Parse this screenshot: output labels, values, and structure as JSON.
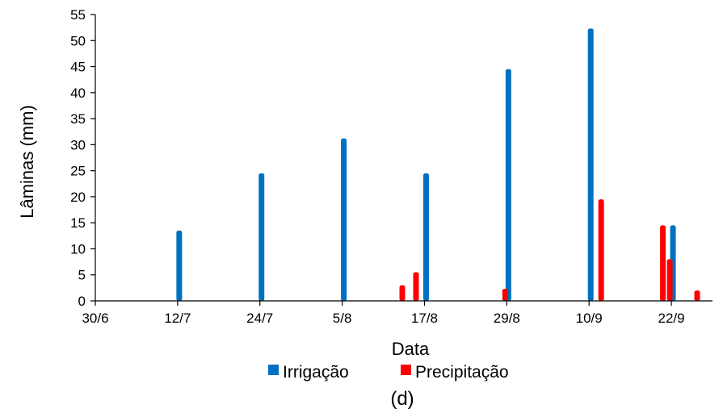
{
  "colors": {
    "irrigacao": "#0070C0",
    "precipitacao": "#FF0000"
  },
  "panel_label": "(d)",
  "chart_data": {
    "type": "bar",
    "xlabel": "Data",
    "ylabel": "Lâminas (mm)",
    "xlim": [
      "30/6",
      "28/9"
    ],
    "x_tick_labels": [
      "30/6",
      "12/7",
      "24/7",
      "5/8",
      "17/8",
      "29/8",
      "10/9",
      "22/9"
    ],
    "ylim": [
      0,
      55
    ],
    "y_ticks": [
      0,
      5,
      10,
      15,
      20,
      25,
      30,
      35,
      40,
      45,
      50,
      55
    ],
    "grid": false,
    "legend_position": "bottom",
    "series": [
      {
        "name": "Irrigação",
        "color": "#0070C0",
        "points": [
          {
            "date": "12/7",
            "value": 13.5
          },
          {
            "date": "24/7",
            "value": 24.5
          },
          {
            "date": "5/8",
            "value": 31.2
          },
          {
            "date": "17/8",
            "value": 24.5
          },
          {
            "date": "29/8",
            "value": 44.5
          },
          {
            "date": "10/9",
            "value": 52.3
          },
          {
            "date": "22/9",
            "value": 14.5
          }
        ]
      },
      {
        "name": "Precipitação",
        "color": "#FF0000",
        "points": [
          {
            "date": "14/8",
            "value": 3.0
          },
          {
            "date": "16/8",
            "value": 5.5
          },
          {
            "date": "29/8",
            "value": 2.3
          },
          {
            "date": "12/9",
            "value": 19.5
          },
          {
            "date": "21/9",
            "value": 14.5
          },
          {
            "date": "22/9",
            "value": 8.0
          },
          {
            "date": "26/9",
            "value": 2.0
          }
        ]
      }
    ]
  }
}
